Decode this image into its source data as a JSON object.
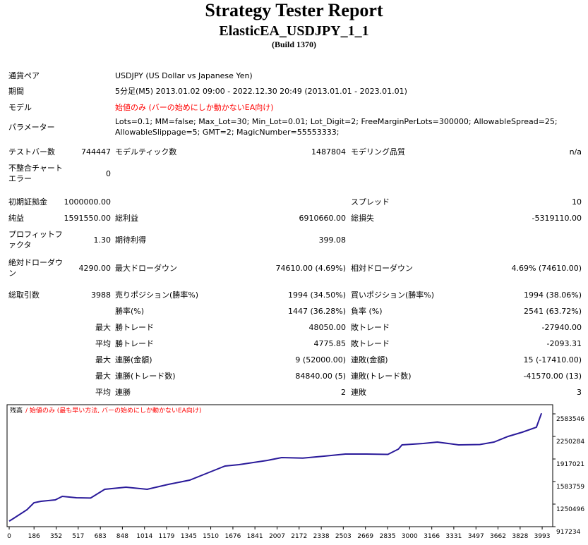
{
  "header": {
    "title": "Strategy Tester Report",
    "subtitle": "ElasticEA_USDJPY_1_1",
    "build": "(Build 1370)"
  },
  "info": [
    {
      "label": "通貨ペア",
      "text": "USDJPY (US Dollar vs Japanese Yen)"
    },
    {
      "label": "期間",
      "text": "5分足(M5) 2013.01.02 09:00 - 2022.12.30 20:49 (2013.01.01 - 2023.01.01)"
    },
    {
      "label": "モデル",
      "text": "始値のみ (バーの始めにしか動かないEA向け)",
      "color": "#ff0000"
    },
    {
      "label": "パラメーター",
      "text": "Lots=0.1; MM=false; Max_Lot=30; Min_Lot=0.01; Lot_Digit=2; FreeMarginPerLots=300000; AllowableSpread=25; AllowableSlippage=5; GMT=2; MagicNumber=55553333;"
    }
  ],
  "stats": [
    {
      "label": "テストバー数",
      "value": "744447",
      "label2": "モデルティック数",
      "value2": "1487804",
      "label3": "モデリング品質",
      "value3": "n/a"
    },
    {
      "label": "不整合チャートエラー",
      "value": "0"
    },
    {
      "label": "初期証拠金",
      "value": "1000000.00",
      "label3": "スプレッド",
      "value3": "10"
    },
    {
      "label": "純益",
      "value": "1591550.00",
      "label2": "総利益",
      "value2": "6910660.00",
      "label3": "総損失",
      "value3": "-5319110.00"
    },
    {
      "label": "プロフィットファクタ",
      "value": "1.30",
      "label2": "期待利得",
      "value2": "399.08"
    },
    {
      "label": "絶対ドローダウン",
      "value": "4290.00",
      "label2": "最大ドローダウン",
      "value2": "74610.00 (4.69%)",
      "label3": "相対ドローダウン",
      "value3": "4.69% (74610.00)"
    },
    {
      "label": "総取引数",
      "value": "3988",
      "label2": "売りポジション(勝率%)",
      "value2": "1994 (34.50%)",
      "label3": "買いポジション(勝率%)",
      "value3": "1994 (38.06%)"
    },
    {
      "label2": "勝率(%)",
      "value2": "1447 (36.28%)",
      "label3": "負率 (%)",
      "value3": "2541 (63.72%)"
    },
    {
      "value": "最大",
      "label2": "勝トレード",
      "value2": "48050.00",
      "label3": "敗トレード",
      "value3": "-27940.00"
    },
    {
      "value": "平均",
      "label2": "勝トレード",
      "value2": "4775.85",
      "label3": "敗トレード",
      "value3": "-2093.31"
    },
    {
      "value": "最大",
      "label2": "連勝(金額)",
      "value2": "9 (52000.00)",
      "label3": "連敗(金額)",
      "value3": "15 (-17410.00)"
    },
    {
      "value": "最大",
      "label2": "連勝(トレード数)",
      "value2": "84840.00 (5)",
      "label3": "連敗(トレード数)",
      "value3": "-41570.00 (13)"
    },
    {
      "value": "平均",
      "label2": "連勝",
      "value2": "2",
      "label3": "連敗",
      "value3": "3"
    }
  ],
  "chart_data": {
    "type": "line",
    "legend_note": "/ 始値のみ (最も早い方法, バーの始めにしか動かないEA向け)",
    "legend_note_color": "#ff0000",
    "x": [
      0,
      27,
      133,
      186,
      239,
      345,
      398,
      504,
      610,
      716,
      875,
      1034,
      1193,
      1352,
      1511,
      1617,
      1723,
      1829,
      1935,
      2041,
      2200,
      2359,
      2519,
      2678,
      2837,
      2916,
      2943,
      3102,
      3208,
      3367,
      3526,
      3632,
      3738,
      3844,
      3950,
      3988
    ],
    "series": [
      {
        "name": "残高",
        "color": "#2a1a9a",
        "values": [
          1000000,
          1031800,
          1167170,
          1271310,
          1292140,
          1312970,
          1365040,
          1344210,
          1340000,
          1469180,
          1500420,
          1469180,
          1542070,
          1604560,
          1729530,
          1812840,
          1833670,
          1864910,
          1896150,
          1937800,
          1930000,
          1958630,
          1989880,
          1990000,
          1985000,
          2062770,
          2125260,
          2146090,
          2166920,
          2125260,
          2130000,
          2166920,
          2250220,
          2312710,
          2385600,
          2591550
        ]
      }
    ],
    "xlim": [
      -16,
      4072
    ],
    "xticks": [
      0,
      186,
      352,
      517,
      683,
      848,
      1014,
      1179,
      1345,
      1510,
      1676,
      1841,
      2007,
      2172,
      2338,
      2503,
      2669,
      2835,
      3000,
      3166,
      3331,
      3497,
      3662,
      3828,
      3993
    ],
    "ylim": [
      917234,
      2718900
    ],
    "yticks": [
      917234,
      1250496,
      1583759,
      1917021,
      2250284,
      2583546
    ]
  }
}
